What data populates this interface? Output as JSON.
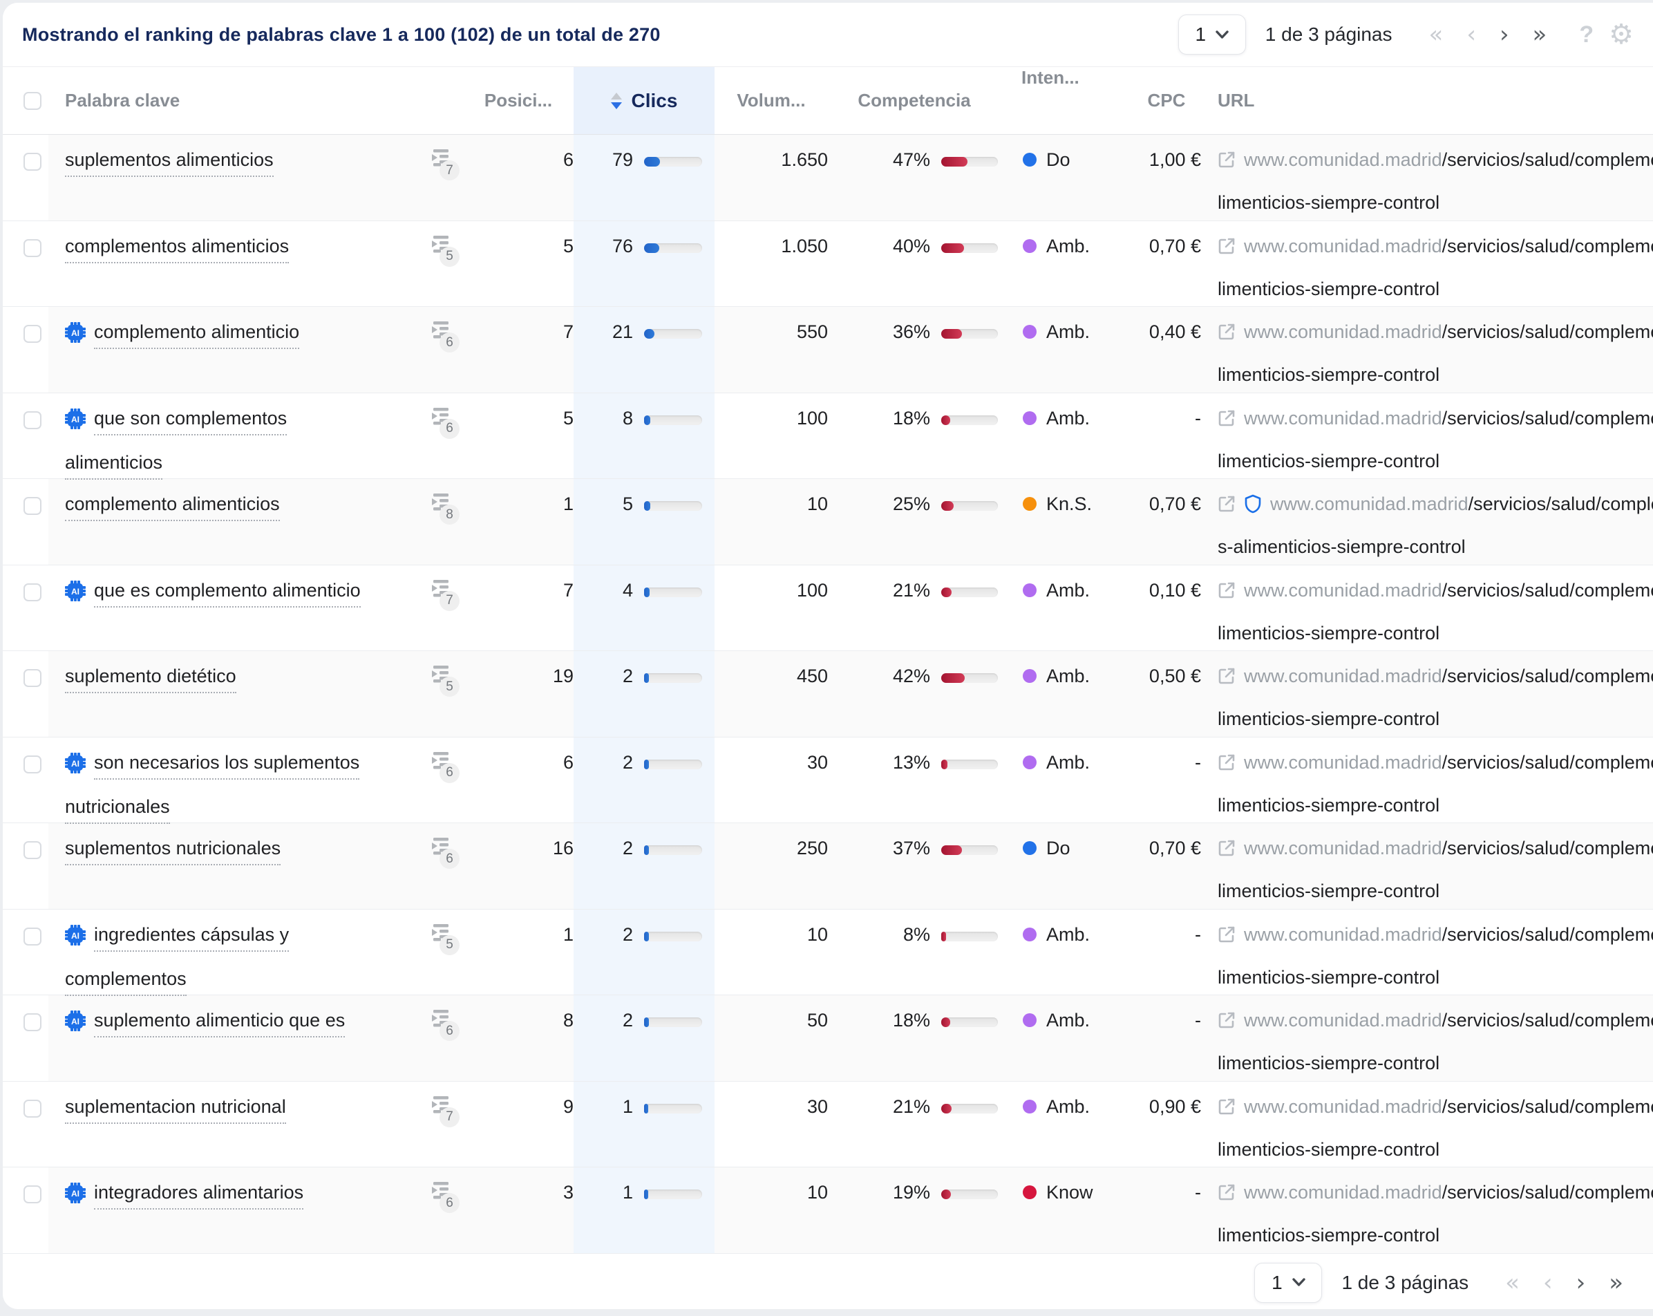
{
  "title": "Mostrando el ranking de palabras clave 1 a 100 (102) de un total de 270",
  "pagination": {
    "page": "1",
    "label": "1 de 3 páginas",
    "first": "«",
    "prev": "‹",
    "next": "›",
    "last": "»",
    "help": "?",
    "gear": "⚙"
  },
  "columns": {
    "keyword": "Palabra clave",
    "position": "Posici...",
    "clicks": "Clics",
    "volume": "Volum...",
    "competition": "Competencia",
    "intent": "Inten...",
    "cpc": "CPC",
    "url": "URL"
  },
  "colors": {
    "accent_navy": "#16295c",
    "clicks_bar": "#2f7ad8",
    "competition_bar": "#c01a3f",
    "clicks_column_bg": "#f0f6fd",
    "intent_do": "#2272e8",
    "intent_amb": "#b06cf0",
    "intent_kns": "#f6900c",
    "intent_know": "#d6163e",
    "ai_chip_blue": "#1c6fe8"
  },
  "rows": [
    {
      "ai": false,
      "kw1": "suplementos alimenticios",
      "kw2": "",
      "serp": "7",
      "pos": "6",
      "clicks": "79",
      "clicks_fill": 27,
      "vol": "1.650",
      "comp": "47%",
      "comp_fill": 46,
      "intent": "Do",
      "intent_color": "#2272e8",
      "cpc": "1,00 €",
      "shield": false,
      "dom": "www.comunidad.madrid",
      "path": "/servicios/salud/complementos-a",
      "l2": "limenticios-siempre-control"
    },
    {
      "ai": false,
      "kw1": "complementos alimenticios",
      "kw2": "",
      "serp": "5",
      "pos": "5",
      "clicks": "76",
      "clicks_fill": 26,
      "vol": "1.050",
      "comp": "40%",
      "comp_fill": 40,
      "intent": "Amb.",
      "intent_color": "#b06cf0",
      "cpc": "0,70 €",
      "shield": false,
      "dom": "www.comunidad.madrid",
      "path": "/servicios/salud/complementos-a",
      "l2": "limenticios-siempre-control"
    },
    {
      "ai": true,
      "kw1": "complemento alimenticio",
      "kw2": "",
      "serp": "6",
      "pos": "7",
      "clicks": "21",
      "clicks_fill": 18,
      "vol": "550",
      "comp": "36%",
      "comp_fill": 36,
      "intent": "Amb.",
      "intent_color": "#b06cf0",
      "cpc": "0,40 €",
      "shield": false,
      "dom": "www.comunidad.madrid",
      "path": "/servicios/salud/complementos-a",
      "l2": "limenticios-siempre-control"
    },
    {
      "ai": true,
      "kw1": "que son complementos",
      "kw2": "alimenticios",
      "serp": "6",
      "pos": "5",
      "clicks": "8",
      "clicks_fill": 11,
      "vol": "100",
      "comp": "18%",
      "comp_fill": 16,
      "intent": "Amb.",
      "intent_color": "#b06cf0",
      "cpc": "-",
      "shield": false,
      "dom": "www.comunidad.madrid",
      "path": "/servicios/salud/complementos-a",
      "l2": "limenticios-siempre-control"
    },
    {
      "ai": false,
      "kw1": "complemento alimenticios",
      "kw2": "",
      "serp": "8",
      "pos": "1",
      "clicks": "5",
      "clicks_fill": 11,
      "vol": "10",
      "comp": "25%",
      "comp_fill": 22,
      "intent": "Kn.S.",
      "intent_color": "#f6900c",
      "cpc": "0,70 €",
      "shield": true,
      "dom": "www.comunidad.madrid",
      "path": "/servicios/salud/complemento",
      "l2": "s-alimenticios-siempre-control"
    },
    {
      "ai": true,
      "kw1": "que es complemento alimenticio",
      "kw2": "",
      "serp": "7",
      "pos": "7",
      "clicks": "4",
      "clicks_fill": 9,
      "vol": "100",
      "comp": "21%",
      "comp_fill": 18,
      "intent": "Amb.",
      "intent_color": "#b06cf0",
      "cpc": "0,10 €",
      "shield": false,
      "dom": "www.comunidad.madrid",
      "path": "/servicios/salud/complementos-a",
      "l2": "limenticios-siempre-control"
    },
    {
      "ai": false,
      "kw1": "suplemento dietético",
      "kw2": "",
      "serp": "5",
      "pos": "19",
      "clicks": "2",
      "clicks_fill": 8,
      "vol": "450",
      "comp": "42%",
      "comp_fill": 42,
      "intent": "Amb.",
      "intent_color": "#b06cf0",
      "cpc": "0,50 €",
      "shield": false,
      "dom": "www.comunidad.madrid",
      "path": "/servicios/salud/complementos-a",
      "l2": "limenticios-siempre-control"
    },
    {
      "ai": true,
      "kw1": "son necesarios los suplementos",
      "kw2": "nutricionales",
      "serp": "6",
      "pos": "6",
      "clicks": "2",
      "clicks_fill": 8,
      "vol": "30",
      "comp": "13%",
      "comp_fill": 11,
      "intent": "Amb.",
      "intent_color": "#b06cf0",
      "cpc": "-",
      "shield": false,
      "dom": "www.comunidad.madrid",
      "path": "/servicios/salud/complementos-a",
      "l2": "limenticios-siempre-control"
    },
    {
      "ai": false,
      "kw1": "suplementos nutricionales",
      "kw2": "",
      "serp": "6",
      "pos": "16",
      "clicks": "2",
      "clicks_fill": 8,
      "vol": "250",
      "comp": "37%",
      "comp_fill": 36,
      "intent": "Do",
      "intent_color": "#2272e8",
      "cpc": "0,70 €",
      "shield": false,
      "dom": "www.comunidad.madrid",
      "path": "/servicios/salud/complementos-a",
      "l2": "limenticios-siempre-control"
    },
    {
      "ai": true,
      "kw1": "ingredientes cápsulas y",
      "kw2": "complementos",
      "serp": "5",
      "pos": "1",
      "clicks": "2",
      "clicks_fill": 8,
      "vol": "10",
      "comp": "8%",
      "comp_fill": 8,
      "intent": "Amb.",
      "intent_color": "#b06cf0",
      "cpc": "-",
      "shield": false,
      "dom": "www.comunidad.madrid",
      "path": "/servicios/salud/complementos-a",
      "l2": "limenticios-siempre-control"
    },
    {
      "ai": true,
      "kw1": "suplemento alimenticio que es",
      "kw2": "",
      "serp": "6",
      "pos": "8",
      "clicks": "2",
      "clicks_fill": 8,
      "vol": "50",
      "comp": "18%",
      "comp_fill": 16,
      "intent": "Amb.",
      "intent_color": "#b06cf0",
      "cpc": "-",
      "shield": false,
      "dom": "www.comunidad.madrid",
      "path": "/servicios/salud/complementos-a",
      "l2": "limenticios-siempre-control"
    },
    {
      "ai": false,
      "kw1": "suplementacion nutricional",
      "kw2": "",
      "serp": "7",
      "pos": "9",
      "clicks": "1",
      "clicks_fill": 7,
      "vol": "30",
      "comp": "21%",
      "comp_fill": 18,
      "intent": "Amb.",
      "intent_color": "#b06cf0",
      "cpc": "0,90 €",
      "shield": false,
      "dom": "www.comunidad.madrid",
      "path": "/servicios/salud/complementos-a",
      "l2": "limenticios-siempre-control"
    },
    {
      "ai": true,
      "kw1": "integradores alimentarios",
      "kw2": "",
      "serp": "6",
      "pos": "3",
      "clicks": "1",
      "clicks_fill": 7,
      "vol": "10",
      "comp": "19%",
      "comp_fill": 17,
      "intent": "Know",
      "intent_color": "#d6163e",
      "cpc": "-",
      "shield": false,
      "dom": "www.comunidad.madrid",
      "path": "/servicios/salud/complementos-a",
      "l2": "limenticios-siempre-control"
    }
  ]
}
